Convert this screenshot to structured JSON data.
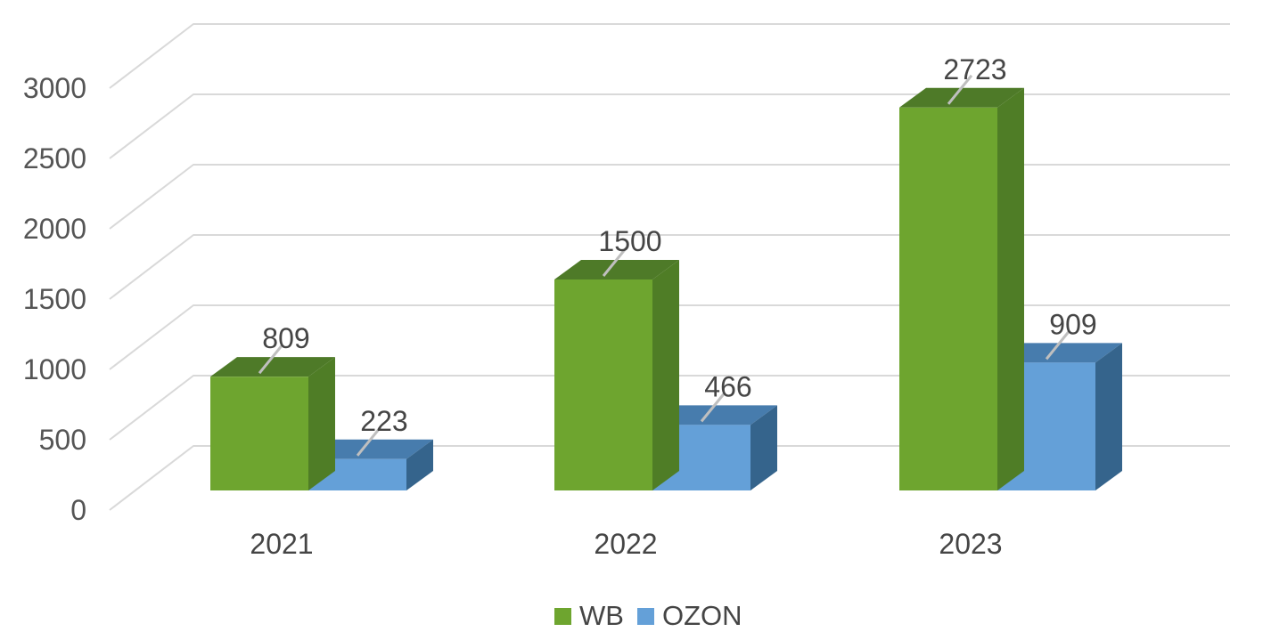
{
  "chart_data": {
    "type": "bar",
    "subtype": "3d-clustered-column",
    "title": "",
    "categories": [
      "2021",
      "2022",
      "2023"
    ],
    "series": [
      {
        "name": "WB",
        "values": [
          809,
          1500,
          2723
        ],
        "color": "#6EA52F",
        "color_top": "#4E7A28",
        "color_side": "#4F7D26"
      },
      {
        "name": "OZON",
        "values": [
          223,
          466,
          909
        ],
        "color": "#64A0D8",
        "color_top": "#477CAD",
        "color_side": "#35648C"
      }
    ],
    "data_labels_visible": true,
    "data_labels": {
      "WB": [
        "809",
        "1500",
        "2723"
      ],
      "OZON": [
        "223",
        "466",
        "909"
      ]
    },
    "y_axis": {
      "min": 0,
      "max": 3000,
      "step": 500,
      "ticks": [
        0,
        500,
        1000,
        1500,
        2000,
        2500,
        3000
      ]
    },
    "x_axis": {
      "labels": [
        "2021",
        "2022",
        "2023"
      ]
    },
    "legend": {
      "position": "bottom",
      "entries": [
        {
          "label": "WB",
          "color": "#6EA52F"
        },
        {
          "label": "OZON",
          "color": "#64A0D8"
        }
      ]
    },
    "grid": true,
    "colors": {
      "background": "#FFFFFF",
      "gridline": "#D9D9D9",
      "leader_line": "#BFBFBF",
      "label_text": "#454545",
      "axis_text": "#555555"
    }
  }
}
